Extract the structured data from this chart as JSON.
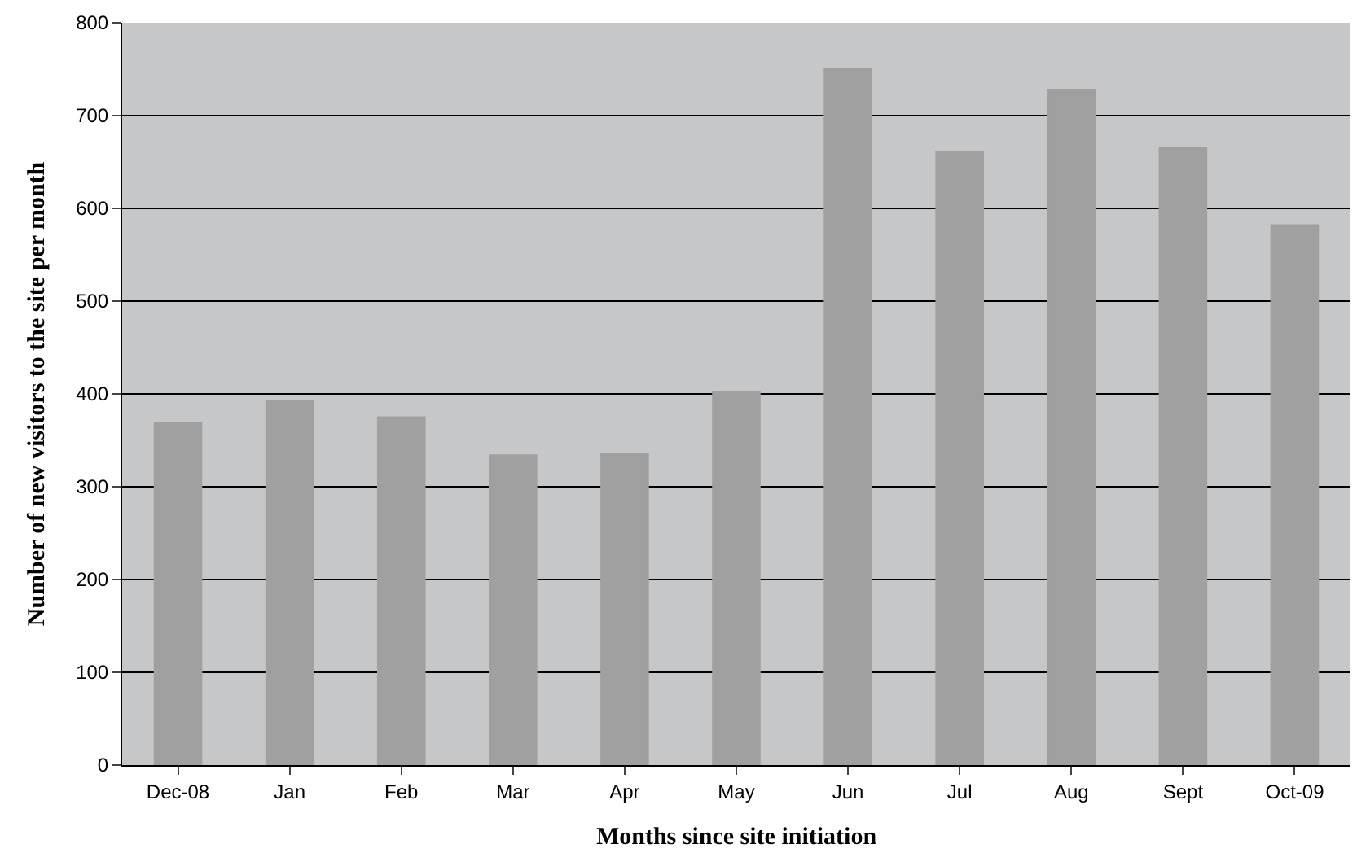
{
  "chart_data": {
    "type": "bar",
    "xlabel": "Months since site initiation",
    "ylabel": "Number of new visitors to the site per month",
    "categories": [
      "Dec-08",
      "Jan",
      "Feb",
      "Mar",
      "Apr",
      "May",
      "Jun",
      "Jul",
      "Aug",
      "Sept",
      "Oct-09"
    ],
    "values": [
      369,
      393,
      375,
      334,
      336,
      402,
      750,
      661,
      728,
      665,
      582
    ],
    "color": "#a0a0a0",
    "ylim": [
      0,
      800
    ],
    "yticks": [
      0,
      100,
      200,
      300,
      400,
      500,
      600,
      700,
      800
    ],
    "grid": "y"
  }
}
